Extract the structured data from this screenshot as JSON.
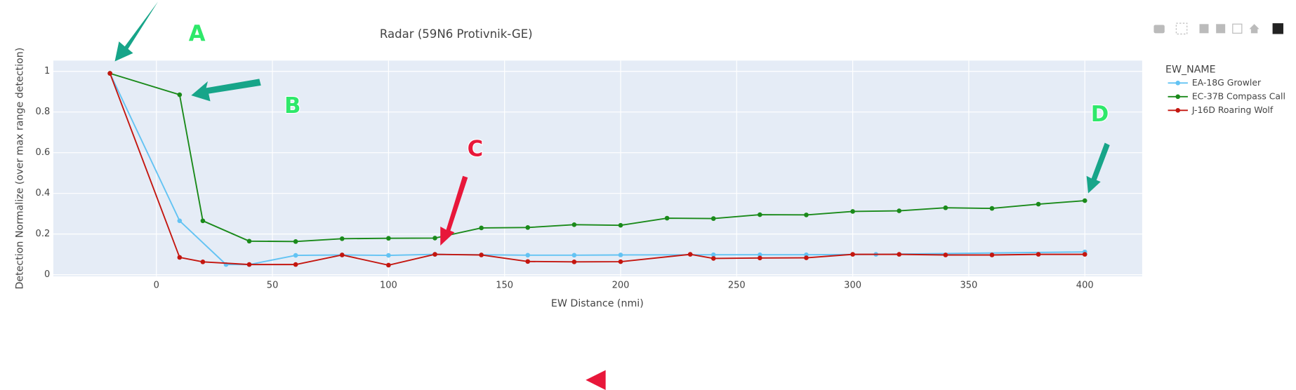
{
  "chart_data": {
    "type": "line",
    "title": "Radar (59N6 Protivnik-GE)",
    "x_label": "EW Distance (nmi)",
    "y_label": "Detection Normalize (over max range detection)",
    "legend_title": "EW_NAME",
    "legend_position": "right",
    "grid": true,
    "xlim": [
      -44.4,
      424.7
    ],
    "ylim": [
      -0.008,
      1.053
    ],
    "xticks": [
      0,
      50,
      100,
      150,
      200,
      250,
      300,
      350,
      400
    ],
    "yticks": [
      0,
      0.2,
      0.4,
      0.6,
      0.8,
      1
    ],
    "series": [
      {
        "name": "EA-18G Growler",
        "color": "#63c3f3",
        "x": [
          -20,
          10,
          30,
          40,
          60,
          80,
          100,
          120,
          160,
          180,
          200,
          240,
          260,
          280,
          310,
          400
        ],
        "values": [
          0.99,
          0.265,
          0.05,
          0.05,
          0.095,
          0.097,
          0.095,
          0.1,
          0.096,
          0.096,
          0.097,
          0.098,
          0.098,
          0.098,
          0.1,
          0.112
        ]
      },
      {
        "name": "EC-37B Compass Call",
        "color": "#1a8a1a",
        "x": [
          -20,
          10,
          20,
          40,
          60,
          80,
          100,
          120,
          140,
          160,
          180,
          200,
          220,
          240,
          260,
          280,
          300,
          320,
          340,
          360,
          380,
          400
        ],
        "values": [
          0.99,
          0.885,
          0.265,
          0.165,
          0.163,
          0.177,
          0.179,
          0.18,
          0.23,
          0.232,
          0.246,
          0.243,
          0.278,
          0.276,
          0.295,
          0.294,
          0.311,
          0.314,
          0.329,
          0.326,
          0.347,
          0.364
        ]
      },
      {
        "name": "J-16D Roaring Wolf",
        "color": "#c4160f",
        "x": [
          -20,
          10,
          20,
          40,
          60,
          80,
          100,
          120,
          140,
          160,
          180,
          200,
          230,
          240,
          260,
          280,
          300,
          320,
          340,
          360,
          380,
          400
        ],
        "values": [
          0.99,
          0.085,
          0.063,
          0.05,
          0.05,
          0.097,
          0.047,
          0.1,
          0.097,
          0.065,
          0.063,
          0.064,
          0.1,
          0.08,
          0.082,
          0.083,
          0.1,
          0.1,
          0.097,
          0.097,
          0.1,
          0.1
        ]
      }
    ],
    "annotations": [
      {
        "text": "A",
        "color": "#2ee86a"
      },
      {
        "text": "B",
        "color": "#2ee86a"
      },
      {
        "text": "C",
        "color": "#e8173a"
      },
      {
        "text": "D",
        "color": "#2ee86a"
      }
    ]
  }
}
